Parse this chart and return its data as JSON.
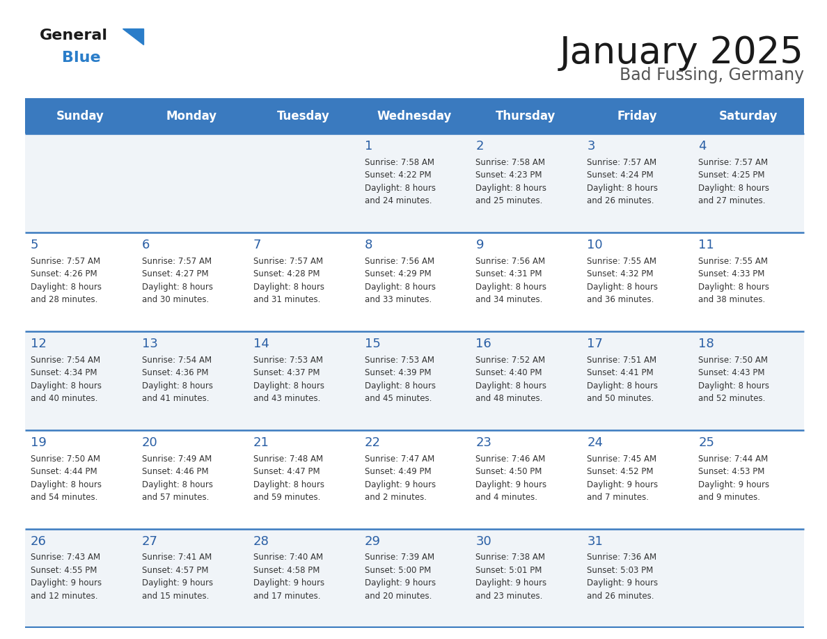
{
  "title": "January 2025",
  "subtitle": "Bad Fussing, Germany",
  "days_of_week": [
    "Sunday",
    "Monday",
    "Tuesday",
    "Wednesday",
    "Thursday",
    "Friday",
    "Saturday"
  ],
  "header_bg": "#3a7abf",
  "header_text": "#ffffff",
  "row_bg_even": "#f0f4f8",
  "row_bg_odd": "#ffffff",
  "day_number_color": "#2a5fa5",
  "cell_text_color": "#333333",
  "divider_color": "#3a7abf",
  "calendar": [
    [
      {
        "day": "",
        "info": ""
      },
      {
        "day": "",
        "info": ""
      },
      {
        "day": "",
        "info": ""
      },
      {
        "day": "1",
        "info": "Sunrise: 7:58 AM\nSunset: 4:22 PM\nDaylight: 8 hours\nand 24 minutes."
      },
      {
        "day": "2",
        "info": "Sunrise: 7:58 AM\nSunset: 4:23 PM\nDaylight: 8 hours\nand 25 minutes."
      },
      {
        "day": "3",
        "info": "Sunrise: 7:57 AM\nSunset: 4:24 PM\nDaylight: 8 hours\nand 26 minutes."
      },
      {
        "day": "4",
        "info": "Sunrise: 7:57 AM\nSunset: 4:25 PM\nDaylight: 8 hours\nand 27 minutes."
      }
    ],
    [
      {
        "day": "5",
        "info": "Sunrise: 7:57 AM\nSunset: 4:26 PM\nDaylight: 8 hours\nand 28 minutes."
      },
      {
        "day": "6",
        "info": "Sunrise: 7:57 AM\nSunset: 4:27 PM\nDaylight: 8 hours\nand 30 minutes."
      },
      {
        "day": "7",
        "info": "Sunrise: 7:57 AM\nSunset: 4:28 PM\nDaylight: 8 hours\nand 31 minutes."
      },
      {
        "day": "8",
        "info": "Sunrise: 7:56 AM\nSunset: 4:29 PM\nDaylight: 8 hours\nand 33 minutes."
      },
      {
        "day": "9",
        "info": "Sunrise: 7:56 AM\nSunset: 4:31 PM\nDaylight: 8 hours\nand 34 minutes."
      },
      {
        "day": "10",
        "info": "Sunrise: 7:55 AM\nSunset: 4:32 PM\nDaylight: 8 hours\nand 36 minutes."
      },
      {
        "day": "11",
        "info": "Sunrise: 7:55 AM\nSunset: 4:33 PM\nDaylight: 8 hours\nand 38 minutes."
      }
    ],
    [
      {
        "day": "12",
        "info": "Sunrise: 7:54 AM\nSunset: 4:34 PM\nDaylight: 8 hours\nand 40 minutes."
      },
      {
        "day": "13",
        "info": "Sunrise: 7:54 AM\nSunset: 4:36 PM\nDaylight: 8 hours\nand 41 minutes."
      },
      {
        "day": "14",
        "info": "Sunrise: 7:53 AM\nSunset: 4:37 PM\nDaylight: 8 hours\nand 43 minutes."
      },
      {
        "day": "15",
        "info": "Sunrise: 7:53 AM\nSunset: 4:39 PM\nDaylight: 8 hours\nand 45 minutes."
      },
      {
        "day": "16",
        "info": "Sunrise: 7:52 AM\nSunset: 4:40 PM\nDaylight: 8 hours\nand 48 minutes."
      },
      {
        "day": "17",
        "info": "Sunrise: 7:51 AM\nSunset: 4:41 PM\nDaylight: 8 hours\nand 50 minutes."
      },
      {
        "day": "18",
        "info": "Sunrise: 7:50 AM\nSunset: 4:43 PM\nDaylight: 8 hours\nand 52 minutes."
      }
    ],
    [
      {
        "day": "19",
        "info": "Sunrise: 7:50 AM\nSunset: 4:44 PM\nDaylight: 8 hours\nand 54 minutes."
      },
      {
        "day": "20",
        "info": "Sunrise: 7:49 AM\nSunset: 4:46 PM\nDaylight: 8 hours\nand 57 minutes."
      },
      {
        "day": "21",
        "info": "Sunrise: 7:48 AM\nSunset: 4:47 PM\nDaylight: 8 hours\nand 59 minutes."
      },
      {
        "day": "22",
        "info": "Sunrise: 7:47 AM\nSunset: 4:49 PM\nDaylight: 9 hours\nand 2 minutes."
      },
      {
        "day": "23",
        "info": "Sunrise: 7:46 AM\nSunset: 4:50 PM\nDaylight: 9 hours\nand 4 minutes."
      },
      {
        "day": "24",
        "info": "Sunrise: 7:45 AM\nSunset: 4:52 PM\nDaylight: 9 hours\nand 7 minutes."
      },
      {
        "day": "25",
        "info": "Sunrise: 7:44 AM\nSunset: 4:53 PM\nDaylight: 9 hours\nand 9 minutes."
      }
    ],
    [
      {
        "day": "26",
        "info": "Sunrise: 7:43 AM\nSunset: 4:55 PM\nDaylight: 9 hours\nand 12 minutes."
      },
      {
        "day": "27",
        "info": "Sunrise: 7:41 AM\nSunset: 4:57 PM\nDaylight: 9 hours\nand 15 minutes."
      },
      {
        "day": "28",
        "info": "Sunrise: 7:40 AM\nSunset: 4:58 PM\nDaylight: 9 hours\nand 17 minutes."
      },
      {
        "day": "29",
        "info": "Sunrise: 7:39 AM\nSunset: 5:00 PM\nDaylight: 9 hours\nand 20 minutes."
      },
      {
        "day": "30",
        "info": "Sunrise: 7:38 AM\nSunset: 5:01 PM\nDaylight: 9 hours\nand 23 minutes."
      },
      {
        "day": "31",
        "info": "Sunrise: 7:36 AM\nSunset: 5:03 PM\nDaylight: 9 hours\nand 26 minutes."
      },
      {
        "day": "",
        "info": ""
      }
    ]
  ],
  "logo_text_general": "General",
  "logo_text_blue": "Blue",
  "logo_color_general": "#1a1a1a",
  "logo_color_blue": "#2a7dc9",
  "logo_triangle_color": "#2a7dc9",
  "title_fontsize": 38,
  "subtitle_fontsize": 17,
  "header_fontsize": 12,
  "day_num_fontsize": 13,
  "cell_fontsize": 8.5
}
